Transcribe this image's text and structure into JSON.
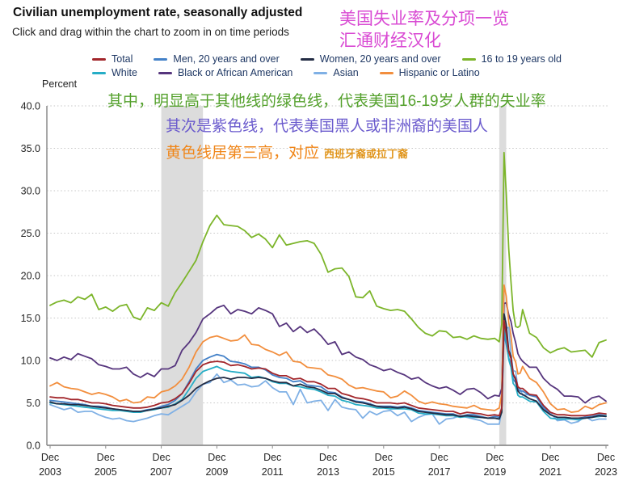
{
  "header": {
    "title": "Civilian unemployment rate, seasonally adjusted",
    "subtitle": "Click and drag within the chart to zoom in on time periods",
    "watermark_line1": "美国失业率及分项一览",
    "watermark_line2": "汇通财经汉化"
  },
  "annotations": {
    "green": "其中，明显高于其他线的绿色线，代表美国16-19岁人群的失业率",
    "purple": "其次是紫色线，代表美国黑人或非洲裔的美国人",
    "orange_main": "黄色线居第三高，对应",
    "orange_small": "西班牙裔或拉丁裔"
  },
  "colors": {
    "watermark_pink": "#d94ad3",
    "annotation_green": "#53a02b",
    "annotation_purple": "#6a5acd",
    "annotation_orange": "#f08619",
    "annotation_orange_small": "#e0951c",
    "legend_text": "#1f3864",
    "axis_line": "#8c8c8c",
    "gridline": "#c6c6c6",
    "tick_text": "#262626",
    "recession_band": "#dcdcdc",
    "background": "#ffffff"
  },
  "chart_data": {
    "type": "line",
    "title": "Civilian unemployment rate, seasonally adjusted",
    "ylabel": "Percent",
    "ylim": [
      0,
      40
    ],
    "x_range": [
      2003.92,
      2023.92
    ],
    "grid": "dotted horizontal",
    "legend_position": "top",
    "yticks": [
      {
        "value": 0,
        "label": "0.0"
      },
      {
        "value": 5,
        "label": "5.0"
      },
      {
        "value": 10,
        "label": "10.0"
      },
      {
        "value": 15,
        "label": "15.0"
      },
      {
        "value": 20,
        "label": "20.0"
      },
      {
        "value": 25,
        "label": "25.0"
      },
      {
        "value": 30,
        "label": "30.0"
      },
      {
        "value": 35,
        "label": "35.0"
      },
      {
        "value": 40,
        "label": "40.0"
      }
    ],
    "xticks": [
      {
        "year": 2003.92,
        "top": "Dec",
        "bottom": "2003"
      },
      {
        "year": 2005.92,
        "top": "Dec",
        "bottom": "2005"
      },
      {
        "year": 2007.92,
        "top": "Dec",
        "bottom": "2007"
      },
      {
        "year": 2009.92,
        "top": "Dec",
        "bottom": "2009"
      },
      {
        "year": 2011.92,
        "top": "Dec",
        "bottom": "2011"
      },
      {
        "year": 2013.92,
        "top": "Dec",
        "bottom": "2013"
      },
      {
        "year": 2015.92,
        "top": "Dec",
        "bottom": "2015"
      },
      {
        "year": 2017.92,
        "top": "Dec",
        "bottom": "2017"
      },
      {
        "year": 2019.92,
        "top": "Dec",
        "bottom": "2019"
      },
      {
        "year": 2021.92,
        "top": "Dec",
        "bottom": "2021"
      },
      {
        "year": 2023.92,
        "top": "Dec",
        "bottom": "2023"
      }
    ],
    "recession_bands": [
      [
        2007.92,
        2009.42
      ],
      [
        2020.08,
        2020.33
      ]
    ],
    "x": [
      2003.92,
      2004.17,
      2004.42,
      2004.67,
      2004.92,
      2005.17,
      2005.42,
      2005.67,
      2005.92,
      2006.17,
      2006.42,
      2006.67,
      2006.92,
      2007.17,
      2007.42,
      2007.67,
      2007.92,
      2008.17,
      2008.42,
      2008.67,
      2008.92,
      2009.17,
      2009.42,
      2009.67,
      2009.92,
      2010.17,
      2010.42,
      2010.67,
      2010.92,
      2011.17,
      2011.42,
      2011.67,
      2011.92,
      2012.17,
      2012.42,
      2012.67,
      2012.92,
      2013.17,
      2013.42,
      2013.67,
      2013.92,
      2014.17,
      2014.42,
      2014.67,
      2014.92,
      2015.17,
      2015.42,
      2015.67,
      2015.92,
      2016.17,
      2016.42,
      2016.67,
      2016.92,
      2017.17,
      2017.42,
      2017.67,
      2017.92,
      2018.17,
      2018.42,
      2018.67,
      2018.92,
      2019.17,
      2019.42,
      2019.67,
      2019.92,
      2020.08,
      2020.17,
      2020.25,
      2020.33,
      2020.42,
      2020.5,
      2020.58,
      2020.67,
      2020.75,
      2020.83,
      2020.92,
      2021.17,
      2021.42,
      2021.67,
      2021.92,
      2022.17,
      2022.42,
      2022.67,
      2022.92,
      2023.17,
      2023.42,
      2023.67,
      2023.92
    ],
    "series": [
      {
        "name": "Total",
        "color": "#a2262b",
        "values": [
          5.7,
          5.6,
          5.6,
          5.4,
          5.4,
          5.2,
          5.0,
          5.0,
          4.9,
          4.7,
          4.6,
          4.5,
          4.4,
          4.4,
          4.5,
          4.7,
          5.0,
          5.1,
          5.5,
          6.1,
          7.3,
          8.7,
          9.5,
          9.8,
          9.9,
          9.8,
          9.4,
          9.5,
          9.3,
          9.0,
          9.1,
          9.0,
          8.5,
          8.2,
          8.2,
          7.8,
          7.9,
          7.5,
          7.5,
          7.2,
          6.7,
          6.7,
          6.1,
          5.9,
          5.6,
          5.5,
          5.3,
          5.0,
          5.0,
          5.0,
          4.9,
          5.0,
          4.7,
          4.4,
          4.3,
          4.2,
          4.1,
          4.0,
          4.0,
          3.7,
          3.9,
          3.8,
          3.7,
          3.5,
          3.6,
          3.5,
          4.4,
          14.7,
          13.2,
          11.0,
          10.2,
          8.4,
          7.9,
          6.9,
          6.7,
          6.7,
          6.0,
          5.9,
          4.7,
          3.9,
          3.6,
          3.6,
          3.5,
          3.5,
          3.5,
          3.6,
          3.8,
          3.7
        ]
      },
      {
        "name": "Men, 20 years and over",
        "color": "#4381c8",
        "values": [
          5.3,
          5.2,
          5.1,
          5.0,
          4.9,
          4.8,
          4.6,
          4.6,
          4.5,
          4.3,
          4.2,
          4.1,
          4.0,
          4.0,
          4.2,
          4.3,
          4.6,
          4.8,
          5.3,
          6.1,
          7.5,
          9.0,
          10.0,
          10.4,
          10.7,
          10.5,
          9.9,
          9.8,
          9.6,
          9.2,
          9.2,
          8.9,
          8.3,
          8.0,
          7.9,
          7.5,
          7.6,
          7.1,
          7.0,
          6.9,
          6.3,
          6.2,
          5.7,
          5.4,
          5.2,
          5.1,
          4.9,
          4.6,
          4.6,
          4.6,
          4.5,
          4.6,
          4.4,
          4.1,
          4.0,
          3.9,
          3.8,
          3.7,
          3.7,
          3.4,
          3.6,
          3.6,
          3.4,
          3.2,
          3.4,
          3.3,
          4.1,
          13.1,
          11.9,
          10.3,
          9.6,
          7.8,
          7.4,
          6.6,
          6.4,
          6.4,
          5.9,
          5.7,
          4.5,
          3.6,
          3.3,
          3.3,
          3.2,
          3.2,
          3.3,
          3.4,
          3.6,
          3.5
        ]
      },
      {
        "name": "Women, 20 years and over",
        "color": "#232c44",
        "values": [
          5.1,
          4.9,
          4.9,
          4.8,
          4.8,
          4.7,
          4.6,
          4.5,
          4.4,
          4.3,
          4.2,
          4.1,
          4.0,
          4.0,
          4.1,
          4.3,
          4.4,
          4.6,
          4.8,
          5.3,
          5.9,
          6.7,
          7.2,
          7.6,
          7.9,
          8.0,
          7.8,
          8.0,
          8.0,
          7.9,
          8.0,
          7.9,
          7.6,
          7.4,
          7.4,
          7.0,
          7.2,
          6.9,
          6.8,
          6.5,
          6.1,
          6.1,
          5.6,
          5.4,
          5.1,
          5.0,
          4.8,
          4.6,
          4.5,
          4.5,
          4.4,
          4.5,
          4.3,
          4.0,
          3.9,
          3.8,
          3.7,
          3.6,
          3.6,
          3.4,
          3.5,
          3.4,
          3.3,
          3.2,
          3.2,
          3.1,
          3.9,
          15.5,
          14.3,
          11.2,
          10.5,
          8.4,
          7.7,
          6.4,
          6.1,
          6.0,
          5.5,
          5.2,
          4.2,
          3.6,
          3.3,
          3.3,
          3.2,
          3.2,
          3.2,
          3.3,
          3.5,
          3.4
        ]
      },
      {
        "name": "16 to 19 years old",
        "color": "#7cb52a",
        "values": [
          16.5,
          16.9,
          17.1,
          16.8,
          17.5,
          17.2,
          17.8,
          16.0,
          16.3,
          15.8,
          16.4,
          16.6,
          15.1,
          14.8,
          16.2,
          15.9,
          16.8,
          16.4,
          18.0,
          19.2,
          20.5,
          21.8,
          24.0,
          25.9,
          27.1,
          26.0,
          25.9,
          25.8,
          25.3,
          24.5,
          24.9,
          24.3,
          23.3,
          24.8,
          23.6,
          23.8,
          24.0,
          24.1,
          23.8,
          22.5,
          20.4,
          20.8,
          20.9,
          19.9,
          17.5,
          17.4,
          18.2,
          16.4,
          16.1,
          15.9,
          16.0,
          15.8,
          14.9,
          13.9,
          13.2,
          12.9,
          13.5,
          13.4,
          12.7,
          12.8,
          12.5,
          12.9,
          12.6,
          12.5,
          12.6,
          12.2,
          14.3,
          34.5,
          29.8,
          23.2,
          19.3,
          15.9,
          14.0,
          13.9,
          14.1,
          16.0,
          13.2,
          12.7,
          11.5,
          10.9,
          11.3,
          11.5,
          11.0,
          11.1,
          11.2,
          10.4,
          12.1,
          12.4
        ]
      },
      {
        "name": "White",
        "color": "#26adc6",
        "values": [
          5.0,
          4.9,
          4.8,
          4.7,
          4.6,
          4.5,
          4.4,
          4.3,
          4.2,
          4.1,
          4.1,
          4.0,
          3.9,
          3.9,
          4.1,
          4.2,
          4.4,
          4.5,
          4.9,
          5.4,
          6.6,
          7.9,
          8.7,
          9.0,
          9.3,
          8.9,
          8.7,
          8.6,
          8.5,
          8.0,
          8.1,
          7.9,
          7.5,
          7.3,
          7.3,
          7.0,
          6.9,
          6.7,
          6.6,
          6.3,
          5.9,
          5.8,
          5.3,
          5.1,
          4.8,
          4.7,
          4.6,
          4.4,
          4.4,
          4.3,
          4.3,
          4.3,
          4.2,
          3.8,
          3.7,
          3.7,
          3.6,
          3.5,
          3.5,
          3.3,
          3.4,
          3.3,
          3.3,
          3.2,
          3.2,
          3.1,
          4.0,
          14.1,
          12.3,
          10.1,
          9.2,
          7.3,
          6.9,
          5.9,
          5.7,
          5.7,
          5.2,
          5.1,
          4.0,
          3.2,
          3.1,
          3.1,
          3.1,
          3.0,
          3.2,
          3.3,
          3.4,
          3.5
        ]
      },
      {
        "name": "Black or African American",
        "color": "#56357d",
        "values": [
          10.3,
          10.0,
          10.4,
          10.1,
          10.8,
          10.5,
          10.2,
          9.5,
          9.3,
          9.0,
          9.0,
          9.2,
          8.4,
          8.0,
          8.5,
          8.1,
          9.0,
          9.0,
          9.4,
          11.2,
          12.1,
          13.3,
          14.9,
          15.5,
          16.2,
          16.5,
          15.5,
          16.0,
          15.8,
          15.5,
          16.2,
          15.9,
          15.5,
          14.0,
          14.4,
          13.4,
          14.0,
          13.3,
          13.7,
          12.9,
          11.9,
          12.2,
          10.7,
          11.0,
          10.4,
          10.1,
          9.5,
          9.2,
          8.8,
          9.0,
          8.6,
          8.3,
          7.8,
          8.0,
          7.4,
          7.0,
          6.7,
          6.9,
          6.5,
          6.0,
          6.6,
          6.7,
          6.2,
          5.5,
          5.9,
          5.8,
          6.7,
          16.7,
          16.8,
          15.4,
          14.6,
          13.2,
          12.1,
          10.8,
          10.3,
          9.9,
          9.2,
          9.2,
          7.9,
          7.1,
          6.6,
          5.8,
          5.8,
          5.7,
          5.0,
          5.6,
          5.8,
          5.2
        ]
      },
      {
        "name": "Asian",
        "color": "#7fb0e5",
        "values": [
          4.8,
          4.5,
          4.2,
          4.4,
          3.9,
          4.0,
          4.0,
          3.6,
          3.3,
          3.1,
          3.2,
          2.9,
          2.8,
          3.0,
          3.2,
          3.5,
          3.7,
          3.6,
          4.1,
          4.6,
          5.1,
          6.3,
          7.2,
          7.4,
          8.4,
          7.4,
          7.7,
          7.1,
          7.2,
          6.9,
          7.0,
          7.6,
          6.8,
          6.3,
          6.3,
          4.8,
          6.6,
          5.0,
          5.2,
          5.3,
          4.1,
          5.4,
          4.5,
          4.3,
          4.2,
          3.2,
          4.0,
          3.6,
          4.0,
          4.1,
          3.5,
          3.9,
          2.8,
          3.3,
          3.6,
          3.7,
          2.5,
          3.1,
          3.2,
          3.5,
          3.3,
          3.1,
          2.9,
          2.5,
          2.5,
          2.5,
          4.1,
          14.5,
          13.8,
          13.9,
          10.7,
          8.8,
          8.7,
          6.7,
          6.7,
          5.9,
          6.0,
          5.8,
          4.2,
          3.8,
          2.9,
          3.0,
          2.6,
          2.8,
          3.4,
          2.9,
          3.1,
          3.1
        ]
      },
      {
        "name": "Hispanic or Latino",
        "color": "#f28e3d",
        "values": [
          7.0,
          7.4,
          6.9,
          6.7,
          6.6,
          6.3,
          6.0,
          6.2,
          6.0,
          5.7,
          5.2,
          5.4,
          5.0,
          5.1,
          5.7,
          5.6,
          6.3,
          6.5,
          7.0,
          7.8,
          9.2,
          11.0,
          12.2,
          12.7,
          12.9,
          12.6,
          12.3,
          12.4,
          13.0,
          11.9,
          11.8,
          11.3,
          11.0,
          10.6,
          11.0,
          9.9,
          9.8,
          9.2,
          9.1,
          9.0,
          8.3,
          8.1,
          7.8,
          7.1,
          6.7,
          6.8,
          6.6,
          6.4,
          6.3,
          5.6,
          5.8,
          6.4,
          5.9,
          5.2,
          4.9,
          5.1,
          4.9,
          4.8,
          4.6,
          4.5,
          4.4,
          4.7,
          4.3,
          4.2,
          4.1,
          4.4,
          6.0,
          18.9,
          17.6,
          14.5,
          12.9,
          10.5,
          9.8,
          8.4,
          8.5,
          9.3,
          7.9,
          7.4,
          6.3,
          4.9,
          4.2,
          4.3,
          3.9,
          4.0,
          4.6,
          4.3,
          4.8,
          5.0
        ]
      }
    ],
    "legend_rows": [
      [
        0,
        1,
        2,
        3
      ],
      [
        4,
        5,
        6,
        7
      ]
    ],
    "draw_order": [
      3,
      5,
      7,
      6,
      1,
      4,
      2,
      0
    ]
  }
}
